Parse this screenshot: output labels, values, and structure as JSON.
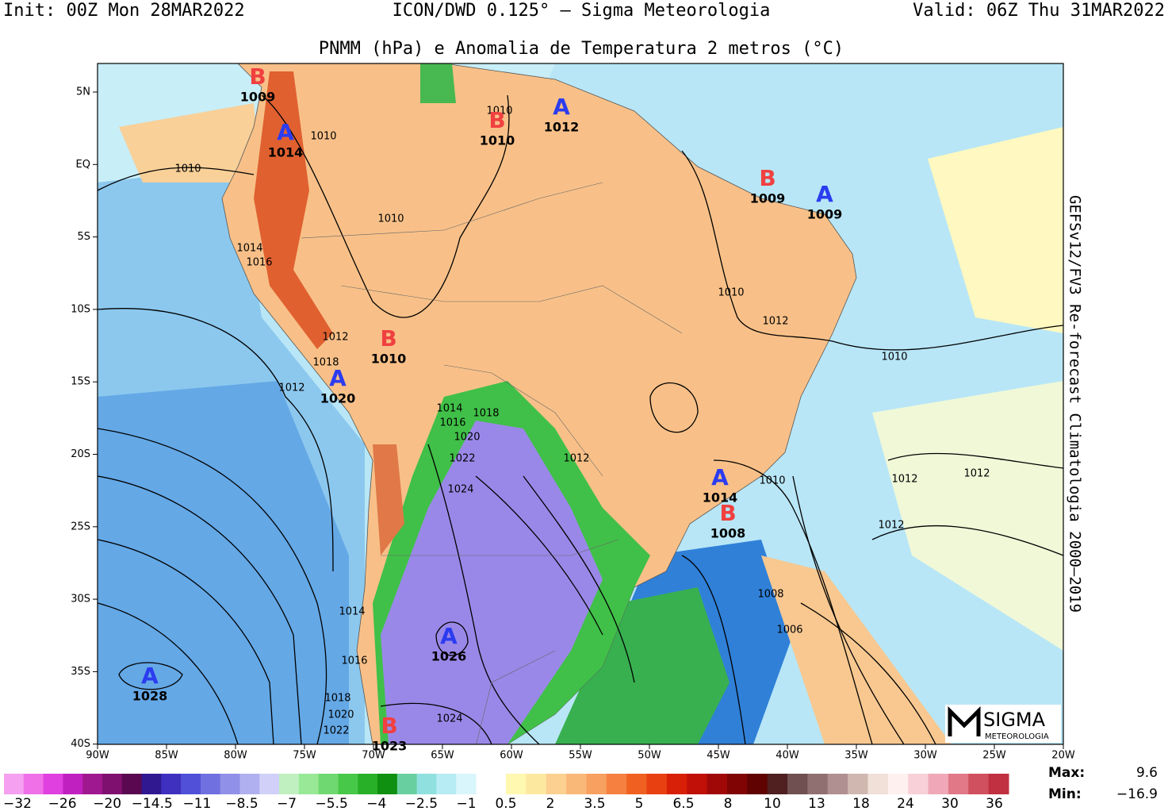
{
  "header": {
    "init": "Init: 00Z Mon 28MAR2022",
    "model": "ICON/DWD 0.125° – Sigma Meteorologia",
    "valid": "Valid: 06Z Thu 31MAR2022"
  },
  "title": "PNMM (hPa) e Anomalia de Temperatura 2 metros (°C)",
  "side_label": "GEFSv12/FV3 Re-forecast Climatologia 2000–2019",
  "lon_labels": [
    "90W",
    "85W",
    "80W",
    "75W",
    "70W",
    "65W",
    "60W",
    "55W",
    "50W",
    "45W",
    "40W",
    "35W",
    "30W",
    "25W",
    "20W"
  ],
  "lat_labels": [
    "5N",
    "EQ",
    "5S",
    "10S",
    "15S",
    "20S",
    "25S",
    "30S",
    "35S",
    "40S"
  ],
  "centers": [
    {
      "letter": "B",
      "value": "1009"
    },
    {
      "letter": "A",
      "value": "1014"
    },
    {
      "letter": "B",
      "value": "1010"
    },
    {
      "letter": "A",
      "value": "1012"
    },
    {
      "letter": "B",
      "value": "1009"
    },
    {
      "letter": "A",
      "value": "1009"
    },
    {
      "letter": "B",
      "value": "1010"
    },
    {
      "letter": "A",
      "value": "1020"
    },
    {
      "letter": "A",
      "value": "1014"
    },
    {
      "letter": "B",
      "value": "1008"
    },
    {
      "letter": "A",
      "value": "1026"
    },
    {
      "letter": "A",
      "value": "1028"
    },
    {
      "letter": "B",
      "value": "1023"
    }
  ],
  "isobar_labels": [
    "1010",
    "1010",
    "1010",
    "1010",
    "1014",
    "1016",
    "1010",
    "1012",
    "1010",
    "1012",
    "1018",
    "1012",
    "1014",
    "1016",
    "1018",
    "1020",
    "1022",
    "1024",
    "1012",
    "1010",
    "1012",
    "1012",
    "1012",
    "1008",
    "1006",
    "1014",
    "1016",
    "1018",
    "1020",
    "1022",
    "1024"
  ],
  "center_colors": {
    "A": "#2b3cf0",
    "B": "#f04040"
  },
  "colorbar_left": {
    "labels": [
      "−32",
      "−26",
      "−20",
      "−14.5",
      "−11",
      "−8.5",
      "−7",
      "−5.5",
      "−4",
      "−2.5",
      "−1"
    ],
    "colors": [
      "#f5a0f0",
      "#f070e8",
      "#e040e0",
      "#c020c0",
      "#a01890",
      "#801070",
      "#5a0850",
      "#301890",
      "#4030c0",
      "#5050d8",
      "#7070e0",
      "#9090e8",
      "#b0b0f0",
      "#d0d0f8",
      "#c0f0c0",
      "#98e898",
      "#70d870",
      "#48c848",
      "#28b028",
      "#109010",
      "#68d0a0",
      "#90e0e0",
      "#b8ecf4",
      "#d8f6fc"
    ]
  },
  "colorbar_right": {
    "labels": [
      "0.5",
      "2",
      "3.5",
      "5",
      "6.5",
      "8",
      "10",
      "13",
      "18",
      "24",
      "30",
      "36"
    ],
    "colors": [
      "#fff8b0",
      "#fde8a0",
      "#fcd090",
      "#fab878",
      "#f8a060",
      "#f68040",
      "#f06020",
      "#e84010",
      "#d82008",
      "#c01008",
      "#a00808",
      "#800404",
      "#600202",
      "#502020",
      "#705050",
      "#907070",
      "#b09090",
      "#d0b8b0",
      "#f0e0d8",
      "#fff0f0",
      "#f8d0d8",
      "#f0a8b8",
      "#e07888",
      "#d05060",
      "#c03040"
    ]
  },
  "stats": {
    "max_label": "Max:",
    "max": "9.6",
    "min_label": "Min:",
    "min": "−16.9"
  },
  "logo": {
    "name": "SIGMA",
    "sub": "METEOROLOGIA"
  }
}
